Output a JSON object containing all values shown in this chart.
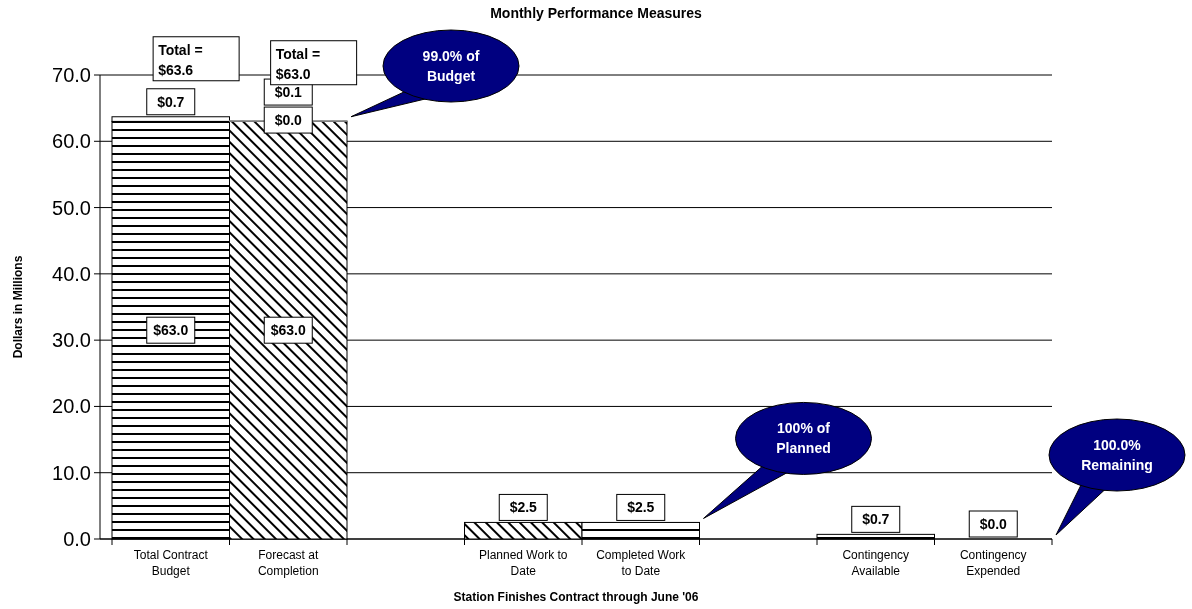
{
  "chart_data": {
    "type": "bar",
    "stacked": true,
    "title": "Monthly Performance Measures",
    "xlabel": "Station Finishes Contract through June '06",
    "ylabel": "Dollars in Millions",
    "categories": [
      "Total Contract Budget",
      "Forecast at Completion",
      null,
      "Planned Work to Date",
      "Completed Work to Date",
      null,
      "Contingency Available",
      "Contingency Expended"
    ],
    "series": [
      {
        "color": "#000000",
        "values": [
          63.0,
          63.0,
          null,
          2.5,
          2.5,
          null,
          0.7,
          0.0
        ],
        "value_labels": [
          "$63.0",
          "$63.0",
          null,
          "$2.5",
          "$2.5",
          null,
          "$0.7",
          "$0.0"
        ]
      },
      {
        "color": "#000000",
        "values": [
          0.7,
          0.0,
          null,
          null,
          null,
          null,
          null,
          null
        ],
        "value_labels": [
          "$0.7",
          "$0.0",
          null,
          null,
          null,
          null,
          null,
          null
        ]
      },
      {
        "color": "#808080",
        "values": [
          null,
          0.1,
          null,
          null,
          null,
          null,
          null,
          null
        ],
        "value_labels": [
          null,
          "$0.1",
          null,
          null,
          null,
          null,
          null,
          null
        ]
      }
    ],
    "totals": [
      "Total =\n$63.6",
      "Total =\n$63.0",
      null,
      null,
      null,
      null,
      null,
      null
    ],
    "annotations": [
      "99.0% of Budget",
      "100% of Planned",
      "100.0% Remaining"
    ],
    "ylim": [
      0,
      70
    ],
    "yticks": [
      {
        "value": 0,
        "label": "0.0"
      },
      {
        "value": 10,
        "label": "10.0"
      },
      {
        "value": 20,
        "label": "20.0"
      },
      {
        "value": 30,
        "label": "30.0"
      },
      {
        "value": 40,
        "label": "40.0"
      },
      {
        "value": 50,
        "label": "50.0"
      },
      {
        "value": 60,
        "label": "60.0"
      },
      {
        "value": 70,
        "label": "70.0"
      }
    ],
    "grid": "y"
  }
}
